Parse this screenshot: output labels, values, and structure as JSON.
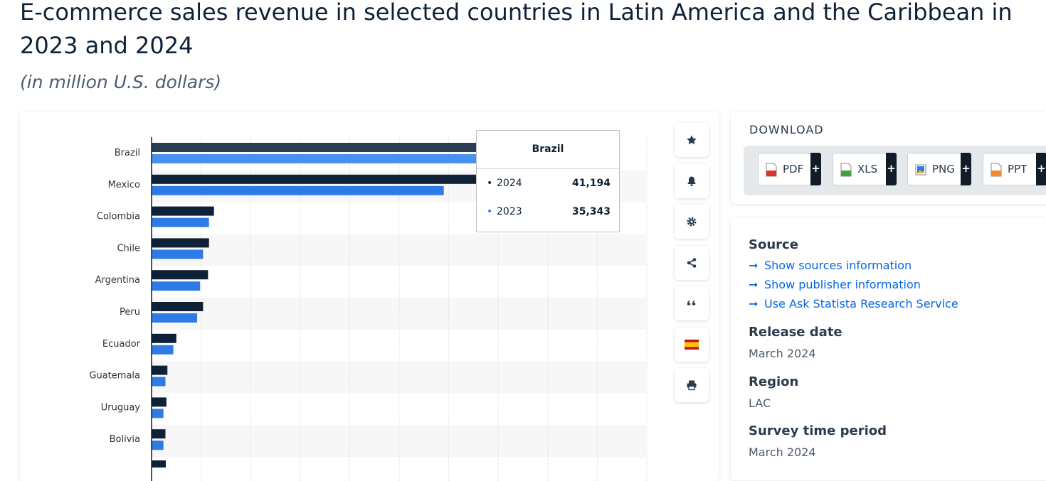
{
  "page": {
    "title": "E-commerce sales revenue in selected countries in Latin America and the Caribbean in 2023 and 2024",
    "subtitle": "(in million U.S. dollars)"
  },
  "chart_data": {
    "type": "bar",
    "orientation": "horizontal",
    "categories": [
      "Brazil",
      "Mexico",
      "Colombia",
      "Chile",
      "Argentina",
      "Peru",
      "Ecuador",
      "Guatemala",
      "Uruguay",
      "Bolivia"
    ],
    "series": [
      {
        "name": "2024",
        "color": "#0f2136",
        "values": [
          41194,
          34800,
          6300,
          5800,
          5700,
          5200,
          2500,
          1600,
          1500,
          1400
        ]
      },
      {
        "name": "2023",
        "color": "#2f7be6",
        "values": [
          35343,
          29500,
          5800,
          5200,
          4900,
          4600,
          2200,
          1400,
          1200,
          1200
        ]
      }
    ],
    "highlight_color_2023": "#4a90ee",
    "xlim": [
      0,
      50000
    ],
    "grid": true,
    "xlabel": "",
    "ylabel": "",
    "title": ""
  },
  "tooltip": {
    "title": "Brazil",
    "rows": [
      {
        "year": "2024",
        "value": "41,194",
        "color": "#0f2136"
      },
      {
        "year": "2023",
        "value": "35,343",
        "color": "#2f7be6"
      }
    ]
  },
  "toolbar": {
    "icons": [
      "star-icon",
      "bell-icon",
      "gear-icon",
      "share-icon",
      "quote-icon",
      "spain-flag-icon",
      "print-icon"
    ]
  },
  "download": {
    "title": "DOWNLOAD",
    "buttons": [
      {
        "label": "PDF",
        "plus": "+",
        "icon_color": "#d9362b"
      },
      {
        "label": "XLS",
        "plus": "+",
        "icon_color": "#43a047"
      },
      {
        "label": "PNG",
        "plus": "+",
        "icon_color": "#2f7be6"
      },
      {
        "label": "PPT",
        "plus": "+",
        "icon_color": "#f28c28"
      }
    ]
  },
  "info": {
    "source_heading": "Source",
    "links": [
      {
        "arrow": "➞",
        "label": "Show sources information"
      },
      {
        "arrow": "➞",
        "label": "Show publisher information"
      },
      {
        "arrow": "➞",
        "label": "Use Ask Statista Research Service"
      }
    ],
    "release_heading": "Release date",
    "release_value": "March 2024",
    "region_heading": "Region",
    "region_value": "LAC",
    "survey_heading": "Survey time period",
    "survey_value": "March 2024"
  }
}
